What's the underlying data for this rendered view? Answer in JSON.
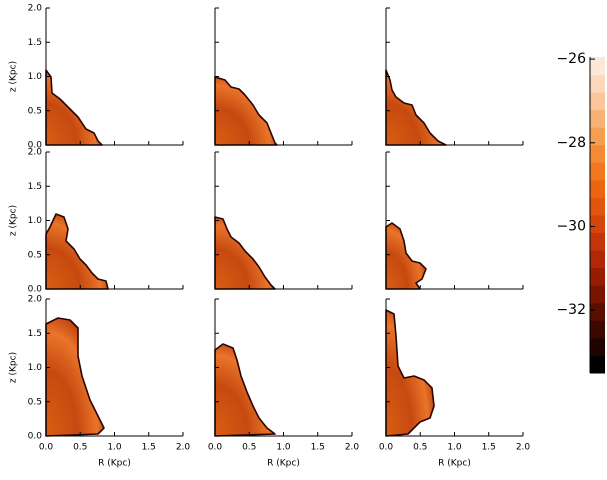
{
  "chart_data": {
    "type": "image-grid",
    "xlabel": "R (Kpc)",
    "ylabel": "z (Kpc)",
    "xlim": [
      0,
      2
    ],
    "ylim": [
      0,
      2
    ],
    "xticks": [
      {
        "value": 0,
        "label": "0.0"
      },
      {
        "value": 0.5,
        "label": "0.5"
      },
      {
        "value": 1,
        "label": "1.0"
      },
      {
        "value": 1.5,
        "label": "1.5"
      },
      {
        "value": 2,
        "label": "2.0"
      }
    ],
    "yticks": [
      {
        "value": 0,
        "label": "0.0"
      },
      {
        "value": 0.5,
        "label": "0.5"
      },
      {
        "value": 1,
        "label": "1.0"
      },
      {
        "value": 1.5,
        "label": "1.5"
      },
      {
        "value": 2,
        "label": "2.0"
      }
    ],
    "grid": false,
    "colorbar": {
      "ylim": [
        -33.5,
        -25.95
      ],
      "yticks": [
        {
          "value": -26,
          "label": "−26"
        },
        {
          "value": -28,
          "label": "−28"
        },
        {
          "value": -30,
          "label": "−30"
        },
        {
          "value": -32,
          "label": "−32"
        }
      ],
      "colors": [
        "#000000",
        "#1e0300",
        "#3c0800",
        "#5a0e00",
        "#781500",
        "#961d02",
        "#b02806",
        "#c4360a",
        "#d4450c",
        "#e2550e",
        "#ec6612",
        "#f2781e",
        "#f48a34",
        "#f69e52",
        "#f8b276",
        "#fac69a",
        "#fcd9bc",
        "#fde8d8"
      ]
    }
  }
}
